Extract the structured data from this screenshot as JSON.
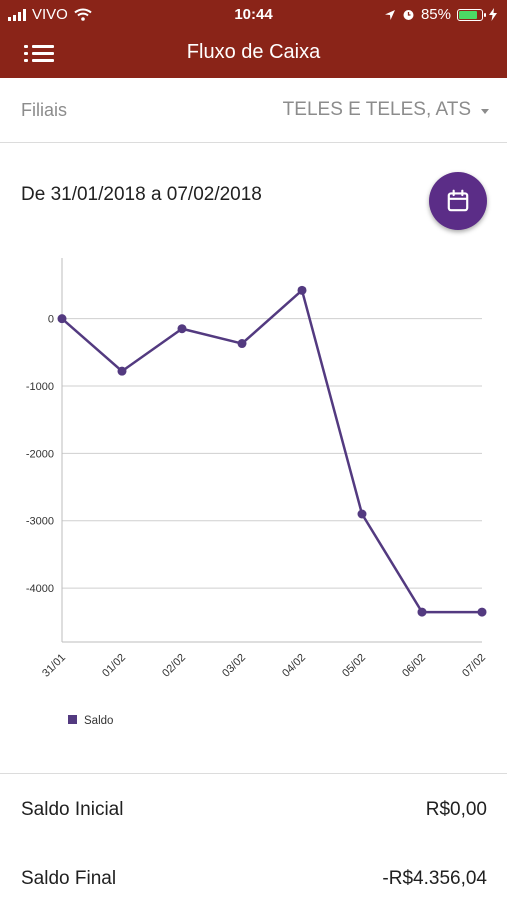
{
  "status_bar": {
    "carrier": "VIVO",
    "time": "10:44",
    "battery_percent": "85%",
    "battery_level": 0.85
  },
  "app_bar": {
    "title": "Fluxo de Caixa"
  },
  "filter": {
    "label": "Filiais",
    "selected": "TELES E TELES, ATS"
  },
  "date_range": "De 31/01/2018 a 07/02/2018",
  "chart_data": {
    "type": "line",
    "categories": [
      "31/01",
      "01/02",
      "02/02",
      "03/02",
      "04/02",
      "05/02",
      "06/02",
      "07/02"
    ],
    "series": [
      {
        "name": "Saldo",
        "values": [
          0,
          -780,
          -150,
          -370,
          420,
          -2900,
          -4356.04,
          -4356.04
        ],
        "color": "#533a80"
      }
    ],
    "yticks": [
      0,
      -1000,
      -2000,
      -3000,
      -4000
    ],
    "ylim": [
      -4800,
      900
    ],
    "grid": true,
    "legend_position": "bottom-left"
  },
  "summary": {
    "initial_label": "Saldo Inicial",
    "initial_value": "R$0,00",
    "final_label": "Saldo Final",
    "final_value": "-R$4.356,04"
  }
}
